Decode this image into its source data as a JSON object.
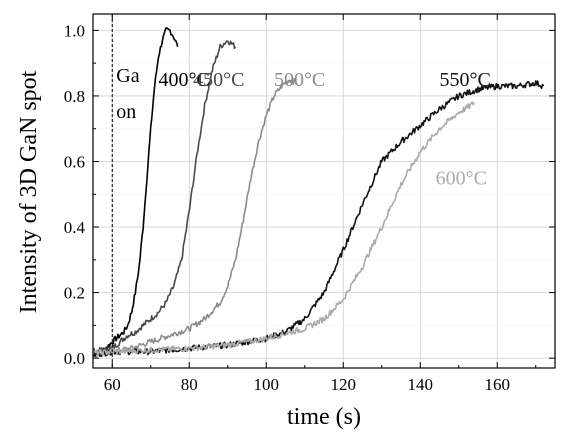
{
  "chart_data": {
    "type": "line",
    "title": "",
    "xlabel": "time (s)",
    "ylabel": "Intensity of 3D GaN  spot",
    "xlim": [
      55,
      175
    ],
    "ylim": [
      -0.03,
      1.05
    ],
    "x_ticks": [
      "60",
      "80",
      "100",
      "120",
      "140",
      "160"
    ],
    "y_ticks": [
      "0.0",
      "0.2",
      "0.4",
      "0.6",
      "0.8",
      "1.0"
    ],
    "grid": true,
    "legend": "none",
    "marker_line": {
      "x": 60,
      "label_line1": "Ga",
      "label_line2": "on"
    },
    "series": [
      {
        "name": "400°C",
        "color": "#000000",
        "x": [
          55,
          58,
          60,
          61,
          62,
          63,
          64,
          65,
          66,
          67,
          68,
          69,
          70,
          71,
          72,
          73,
          74,
          75,
          76,
          77
        ],
        "y": [
          0.02,
          0.025,
          0.05,
          0.06,
          0.07,
          0.08,
          0.1,
          0.14,
          0.2,
          0.28,
          0.4,
          0.55,
          0.7,
          0.83,
          0.92,
          0.97,
          1.0,
          1.0,
          0.98,
          0.95
        ]
      },
      {
        "name": "450°C",
        "color": "#4a4a4a",
        "x": [
          55,
          60,
          62,
          64,
          66,
          68,
          70,
          72,
          74,
          76,
          78,
          80,
          82,
          84,
          86,
          88,
          90,
          92
        ],
        "y": [
          0.02,
          0.03,
          0.05,
          0.07,
          0.08,
          0.1,
          0.12,
          0.14,
          0.17,
          0.22,
          0.3,
          0.45,
          0.62,
          0.77,
          0.88,
          0.95,
          0.97,
          0.95
        ]
      },
      {
        "name": "500°C",
        "color": "#8c8c8c",
        "x": [
          55,
          60,
          65,
          70,
          75,
          80,
          84,
          88,
          90,
          92,
          94,
          96,
          98,
          100,
          102,
          104,
          106,
          108
        ],
        "y": [
          0.01,
          0.02,
          0.03,
          0.05,
          0.07,
          0.09,
          0.12,
          0.17,
          0.22,
          0.3,
          0.42,
          0.55,
          0.66,
          0.74,
          0.8,
          0.83,
          0.85,
          0.84
        ]
      },
      {
        "name": "550°C",
        "color": "#111111",
        "x": [
          55,
          60,
          70,
          80,
          90,
          100,
          105,
          110,
          115,
          120,
          125,
          130,
          135,
          140,
          145,
          150,
          155,
          160,
          165,
          170,
          172
        ],
        "y": [
          0.01,
          0.02,
          0.02,
          0.03,
          0.04,
          0.06,
          0.08,
          0.12,
          0.2,
          0.33,
          0.47,
          0.6,
          0.66,
          0.71,
          0.76,
          0.8,
          0.82,
          0.83,
          0.83,
          0.84,
          0.83
        ]
      },
      {
        "name": "600°C",
        "color": "#aaaaaa",
        "x": [
          55,
          60,
          70,
          80,
          90,
          100,
          110,
          115,
          120,
          125,
          130,
          135,
          140,
          145,
          150,
          153,
          154
        ],
        "y": [
          0.015,
          0.02,
          0.025,
          0.03,
          0.04,
          0.06,
          0.09,
          0.12,
          0.18,
          0.28,
          0.4,
          0.53,
          0.63,
          0.7,
          0.75,
          0.77,
          0.78
        ]
      }
    ],
    "annotations": [
      {
        "text": "400°C",
        "series": 0
      },
      {
        "text": "450°C",
        "series": 1
      },
      {
        "text": "500°C",
        "series": 2
      },
      {
        "text": "550°C",
        "series": 3
      },
      {
        "text": "600°C",
        "series": 4
      }
    ]
  }
}
